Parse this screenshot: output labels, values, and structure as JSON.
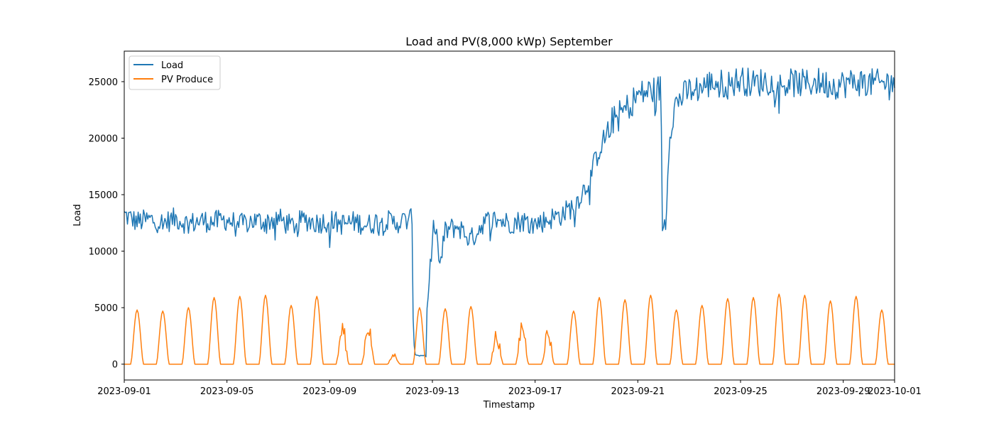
{
  "chart_data": {
    "type": "line",
    "title": "Load and PV(8,000 kWp) September",
    "xlabel": "Timestamp",
    "ylabel": "Load",
    "xlim": [
      "2023-09-01",
      "2023-10-01"
    ],
    "ylim": [
      -1400,
      27700
    ],
    "x_unit": "day_of_september",
    "x_ticks": [
      {
        "value": 0,
        "label": "2023-09-01"
      },
      {
        "value": 4,
        "label": "2023-09-05"
      },
      {
        "value": 8,
        "label": "2023-09-09"
      },
      {
        "value": 12,
        "label": "2023-09-13"
      },
      {
        "value": 16,
        "label": "2023-09-17"
      },
      {
        "value": 20,
        "label": "2023-09-21"
      },
      {
        "value": 24,
        "label": "2023-09-25"
      },
      {
        "value": 28,
        "label": "2023-09-29"
      },
      {
        "value": 30,
        "label": "2023-10-01"
      }
    ],
    "y_ticks": [
      0,
      5000,
      10000,
      15000,
      20000,
      25000
    ],
    "grid": false,
    "legend_position": "top-left",
    "series": [
      {
        "name": "Load",
        "color": "#1f77b4",
        "sampling": "half-day means (x = day offset from 2023-09-01)",
        "x": [
          0,
          0.5,
          1,
          1.5,
          2,
          2.5,
          3,
          3.5,
          4,
          4.5,
          5,
          5.5,
          6,
          6.5,
          7,
          7.5,
          8,
          8.5,
          9,
          9.5,
          10,
          10.5,
          11,
          11.2,
          11.25,
          11.3,
          11.5,
          11.7,
          11.75,
          11.8,
          12,
          12.1,
          12.3,
          12.5,
          13,
          13.5,
          14,
          14.5,
          15,
          15.5,
          16,
          16.5,
          17,
          17.5,
          18,
          18.5,
          19,
          19.5,
          20,
          20.5,
          20.9,
          20.95,
          21.0,
          21.1,
          21.2,
          21.3,
          21.5,
          22,
          22.5,
          23,
          23.5,
          24,
          24.5,
          25,
          25.5,
          26,
          26.5,
          27,
          27.5,
          28,
          28.5,
          29,
          29.5,
          30
        ],
        "values": [
          13200,
          12600,
          12800,
          12500,
          12900,
          12400,
          12700,
          12600,
          12800,
          12300,
          12700,
          12600,
          12900,
          12200,
          12800,
          12500,
          12700,
          12400,
          12600,
          12300,
          12800,
          12500,
          12700,
          13000,
          5000,
          900,
          750,
          800,
          700,
          5000,
          11000,
          12800,
          8500,
          11800,
          12200,
          11000,
          12600,
          12800,
          12500,
          12700,
          12400,
          12800,
          13200,
          14000,
          15800,
          19000,
          21500,
          22500,
          23800,
          24200,
          24400,
          12500,
          12200,
          12800,
          19000,
          21500,
          23200,
          24200,
          24500,
          25000,
          24700,
          25200,
          24800,
          25100,
          24600,
          24900,
          24800,
          25000,
          24700,
          24800,
          25000,
          24900,
          24800,
          25100
        ]
      },
      {
        "name": "PV Produce",
        "color": "#ff7f0e",
        "sampling": "daily peak (kW) of a daylight bell curve, approx 06:00-18:00",
        "days": [
          0,
          1,
          2,
          3,
          4,
          5,
          6,
          7,
          8,
          9,
          10,
          11,
          12,
          13,
          14,
          15,
          16,
          17,
          18,
          19,
          20,
          21,
          22,
          23,
          24,
          25,
          26,
          27,
          28,
          29
        ],
        "values": [
          4800,
          4700,
          5000,
          5900,
          6000,
          6100,
          5200,
          6000,
          3800,
          4200,
          1000,
          5000,
          4900,
          5100,
          3100,
          4200,
          3400,
          4700,
          5900,
          5700,
          6100,
          4800,
          5200,
          5800,
          5900,
          6200,
          6100,
          5600,
          6000,
          4800
        ]
      }
    ]
  }
}
